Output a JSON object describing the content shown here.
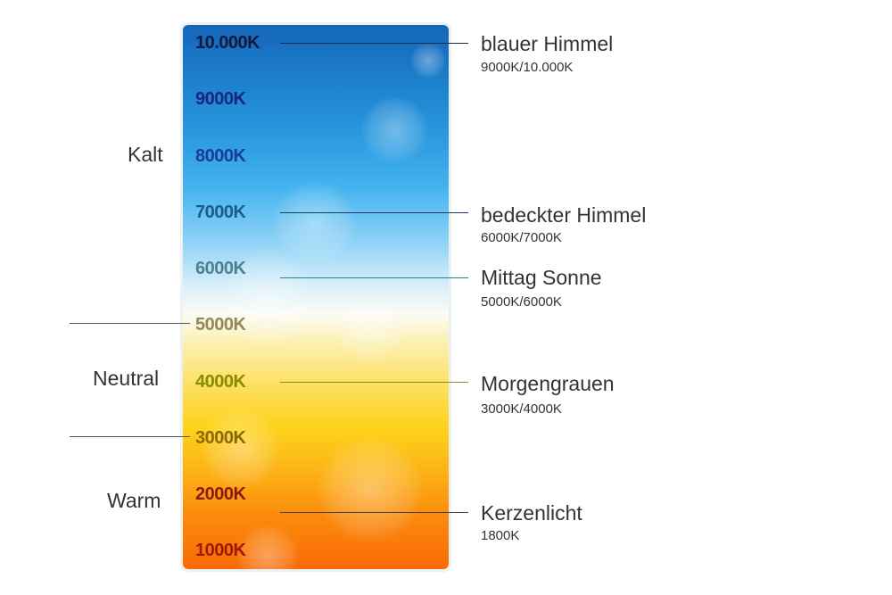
{
  "ticks": [
    {
      "label": "10.000K",
      "color": "#111a3a"
    },
    {
      "label": "9000K",
      "color": "#1a2580"
    },
    {
      "label": "8000K",
      "color": "#1a3a9e"
    },
    {
      "label": "7000K",
      "color": "#1a5c8c"
    },
    {
      "label": "6000K",
      "color": "#4f7f93"
    },
    {
      "label": "5000K",
      "color": "#8f8a5e"
    },
    {
      "label": "4000K",
      "color": "#8a8c00"
    },
    {
      "label": "3000K",
      "color": "#8a6a00"
    },
    {
      "label": "2000K",
      "color": "#8a1a10"
    },
    {
      "label": "1000K",
      "color": "#9a1a05"
    }
  ],
  "categories": {
    "cold": "Kalt",
    "neutral": "Neutral",
    "warm": "Warm"
  },
  "annotations": [
    {
      "title": "blauer Himmel",
      "range": "9000K/10.000K"
    },
    {
      "title": "bedeckter Himmel",
      "range": "6000K/7000K"
    },
    {
      "title": "Mittag Sonne",
      "range": "5000K/6000K"
    },
    {
      "title": "Morgengrauen",
      "range": "3000K/4000K"
    },
    {
      "title": "Kerzenlicht",
      "range": "1800K"
    }
  ]
}
